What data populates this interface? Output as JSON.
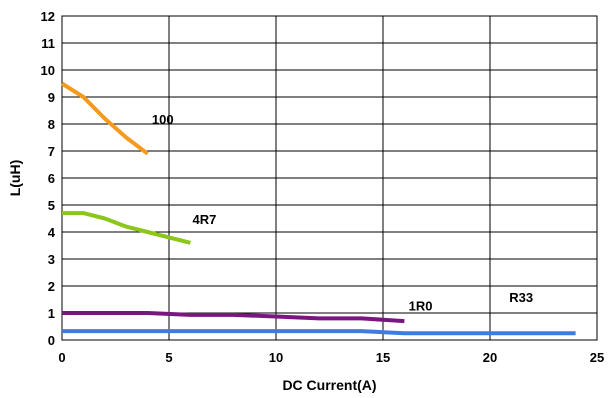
{
  "chart_data": {
    "type": "line",
    "xlabel": "DC Current(A)",
    "ylabel": "L(uH)",
    "xlim": [
      0,
      25
    ],
    "ylim": [
      0,
      12
    ],
    "x_ticks": [
      0,
      5,
      10,
      15,
      20,
      25
    ],
    "y_ticks": [
      0,
      1,
      2,
      3,
      4,
      5,
      6,
      7,
      8,
      9,
      10,
      11,
      12
    ],
    "grid": true,
    "series": [
      {
        "name": "100",
        "color": "#f39a1f",
        "x": [
          0,
          1,
          2,
          3,
          4
        ],
        "y": [
          9.5,
          9.0,
          8.2,
          7.5,
          6.9
        ],
        "label_at": [
          4.2,
          8.0
        ]
      },
      {
        "name": "4R7",
        "color": "#8bc61b",
        "x": [
          0,
          1,
          2,
          3,
          4,
          5,
          6
        ],
        "y": [
          4.7,
          4.7,
          4.5,
          4.2,
          4.0,
          3.8,
          3.6
        ],
        "label_at": [
          6.1,
          4.3
        ]
      },
      {
        "name": "1R0",
        "color": "#7a1680",
        "x": [
          0,
          2,
          4,
          6,
          8,
          10,
          12,
          14,
          16
        ],
        "y": [
          1.0,
          1.0,
          1.0,
          0.93,
          0.93,
          0.87,
          0.8,
          0.8,
          0.7
        ],
        "label_at": [
          16.2,
          1.1
        ]
      },
      {
        "name": "R33",
        "color": "#3f7cdd",
        "x": [
          0,
          4,
          8,
          12,
          14,
          16,
          20,
          24
        ],
        "y": [
          0.33,
          0.33,
          0.33,
          0.33,
          0.33,
          0.25,
          0.25,
          0.25
        ],
        "label_at": [
          20.9,
          1.4
        ]
      }
    ]
  }
}
